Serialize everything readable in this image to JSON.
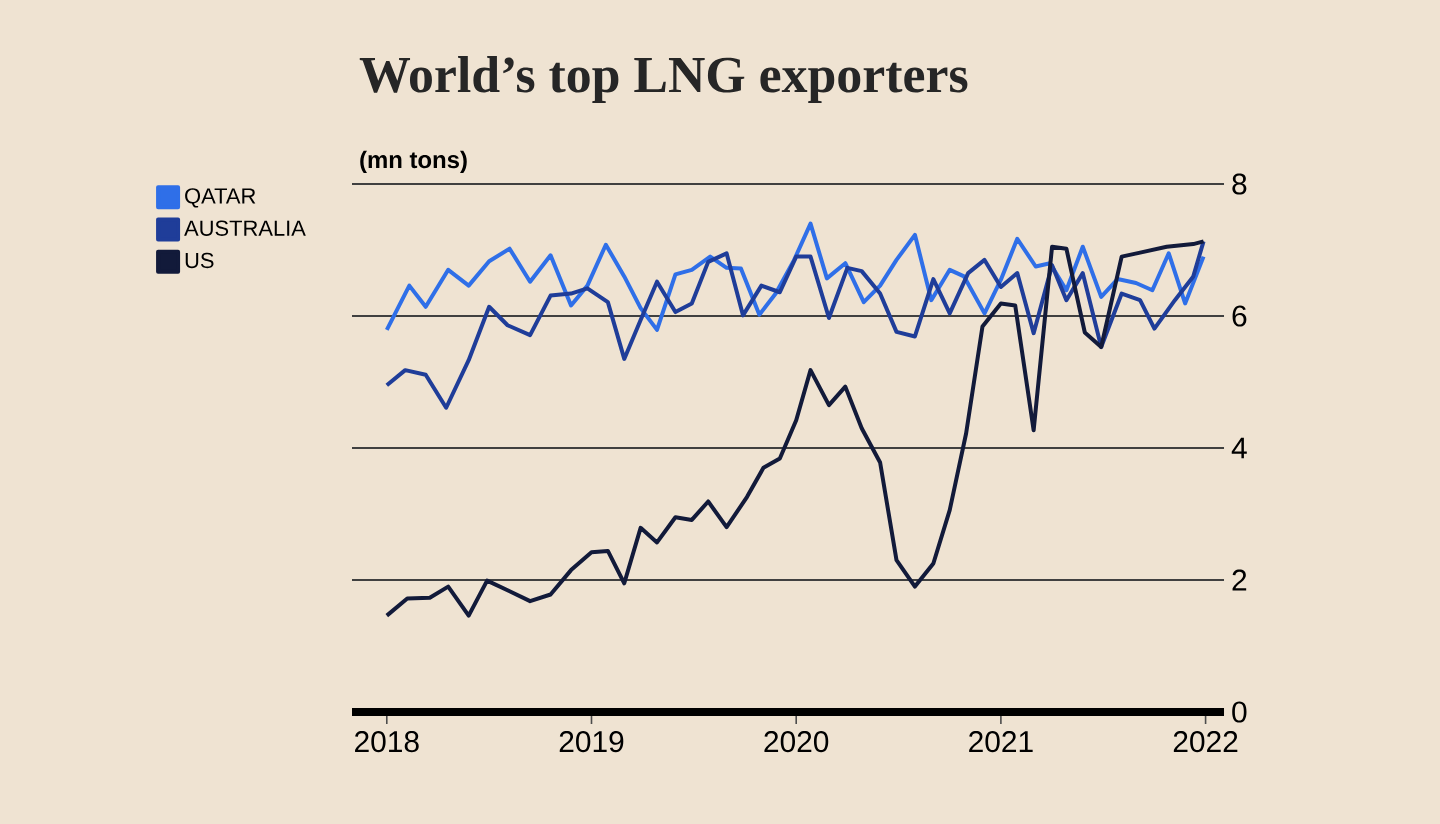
{
  "chart_data": {
    "type": "line",
    "title": "World’s top LNG exporters",
    "ylabel": "(mn tons)",
    "xlim": [
      2017.83,
      2022.09
    ],
    "ylim": [
      0,
      8
    ],
    "xticks": [
      2018,
      2019,
      2020,
      2021,
      2022
    ],
    "yticks": [
      0,
      2,
      4,
      6,
      8
    ],
    "grid": "y",
    "legend": "top left",
    "marker": "none",
    "line_style": "solid",
    "series": [
      {
        "name": "QATAR",
        "color": "#2f6fe8",
        "x": [
          2018.0,
          2018.11,
          2018.19,
          2018.3,
          2018.4,
          2018.5,
          2018.6,
          2018.7,
          2018.8,
          2018.9,
          2018.98,
          2019.07,
          2019.16,
          2019.24,
          2019.32,
          2019.41,
          2019.49,
          2019.58,
          2019.66,
          2019.73,
          2019.82,
          2019.9,
          2019.99,
          2020.07,
          2020.15,
          2020.24,
          2020.33,
          2020.41,
          2020.49,
          2020.58,
          2020.66,
          2020.75,
          2020.82,
          2020.92,
          2021.0,
          2021.08,
          2021.17,
          2021.24,
          2021.32,
          2021.4,
          2021.49,
          2021.57,
          2021.66,
          2021.74,
          2021.82,
          2021.9,
          2021.99
        ],
        "values": [
          5.79,
          6.46,
          6.14,
          6.7,
          6.46,
          6.83,
          7.02,
          6.52,
          6.92,
          6.16,
          6.46,
          7.08,
          6.6,
          6.12,
          5.79,
          6.63,
          6.7,
          6.9,
          6.73,
          6.72,
          6.02,
          6.34,
          6.85,
          7.4,
          6.57,
          6.8,
          6.21,
          6.46,
          6.85,
          7.23,
          6.24,
          6.7,
          6.6,
          6.04,
          6.55,
          7.17,
          6.75,
          6.8,
          6.39,
          7.05,
          6.29,
          6.56,
          6.5,
          6.39,
          6.95,
          6.19,
          6.9
        ]
      },
      {
        "name": "AUSTRALIA",
        "color": "#1f3d99",
        "x": [
          2018.0,
          2018.09,
          2018.19,
          2018.29,
          2018.4,
          2018.5,
          2018.59,
          2018.7,
          2018.8,
          2018.9,
          2018.98,
          2019.08,
          2019.16,
          2019.24,
          2019.32,
          2019.41,
          2019.49,
          2019.57,
          2019.66,
          2019.74,
          2019.83,
          2019.92,
          2020.0,
          2020.07,
          2020.16,
          2020.25,
          2020.32,
          2020.41,
          2020.49,
          2020.58,
          2020.67,
          2020.75,
          2020.84,
          2020.92,
          2021.0,
          2021.08,
          2021.16,
          2021.25,
          2021.32,
          2021.4,
          2021.49,
          2021.59,
          2021.68,
          2021.75,
          2021.85,
          2021.94,
          2021.99
        ],
        "values": [
          4.95,
          5.18,
          5.11,
          4.61,
          5.33,
          6.14,
          5.86,
          5.71,
          6.31,
          6.34,
          6.42,
          6.21,
          5.35,
          5.94,
          6.52,
          6.06,
          6.19,
          6.82,
          6.95,
          6.01,
          6.46,
          6.36,
          6.9,
          6.9,
          5.97,
          6.73,
          6.68,
          6.34,
          5.76,
          5.69,
          6.56,
          6.04,
          6.65,
          6.85,
          6.44,
          6.65,
          5.74,
          6.77,
          6.24,
          6.65,
          5.53,
          6.34,
          6.24,
          5.81,
          6.24,
          6.6,
          7.13
        ]
      },
      {
        "name": "US",
        "color": "#121a3a",
        "x": [
          2018.0,
          2018.1,
          2018.21,
          2018.3,
          2018.4,
          2018.49,
          2018.6,
          2018.7,
          2018.8,
          2018.9,
          2019.0,
          2019.08,
          2019.16,
          2019.24,
          2019.32,
          2019.41,
          2019.49,
          2019.57,
          2019.66,
          2019.76,
          2019.84,
          2019.92,
          2020.0,
          2020.07,
          2020.16,
          2020.24,
          2020.32,
          2020.41,
          2020.49,
          2020.58,
          2020.67,
          2020.75,
          2020.83,
          2020.91,
          2021.0,
          2021.07,
          2021.16,
          2021.25,
          2021.32,
          2021.41,
          2021.49,
          2021.59,
          2021.68,
          2021.81,
          2021.94,
          2021.99
        ],
        "values": [
          1.46,
          1.72,
          1.73,
          1.9,
          1.46,
          1.99,
          1.83,
          1.68,
          1.78,
          2.15,
          2.42,
          2.44,
          1.95,
          2.79,
          2.57,
          2.95,
          2.91,
          3.19,
          2.8,
          3.26,
          3.7,
          3.84,
          4.42,
          5.18,
          4.65,
          4.93,
          4.3,
          3.78,
          2.3,
          1.9,
          2.25,
          3.06,
          4.22,
          5.84,
          6.19,
          6.16,
          4.27,
          7.05,
          7.02,
          5.75,
          5.53,
          6.9,
          6.96,
          7.05,
          7.09,
          7.13
        ]
      }
    ]
  }
}
